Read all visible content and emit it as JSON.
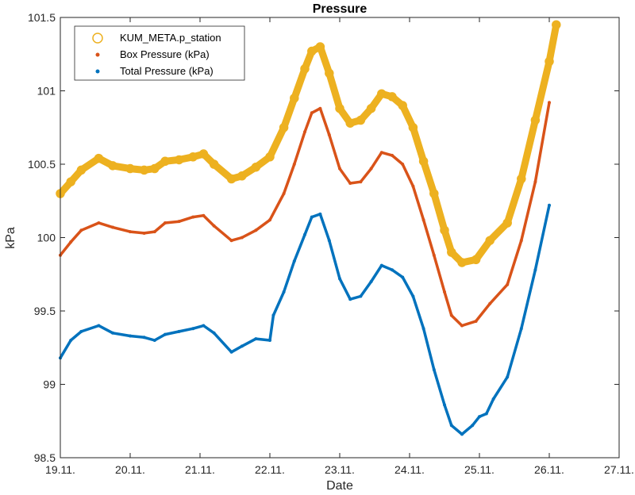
{
  "chart_data": {
    "type": "line",
    "title": "Pressure",
    "xlabel": "Date",
    "ylabel": "kPa",
    "x_unit": "day index (0 = 19.11.)",
    "xlim": [
      0,
      8
    ],
    "ylim": [
      98.5,
      101.5
    ],
    "xticks": [
      0,
      1,
      2,
      3,
      4,
      5,
      6,
      7,
      8
    ],
    "xtick_labels": [
      "19.11.",
      "20.11.",
      "21.11.",
      "22.11.",
      "23.11.",
      "24.11.",
      "25.11.",
      "26.11.",
      "27.11."
    ],
    "yticks": [
      98.5,
      99,
      99.5,
      100,
      100.5,
      101,
      101.5
    ],
    "ytick_labels": [
      "98.5",
      "99",
      "99.5",
      "100",
      "100.5",
      "101",
      "101.5"
    ],
    "grid": false,
    "legend_position": "top-left",
    "series": [
      {
        "name": "KUM_META.p_station",
        "marker": "circle",
        "color": "#EDB120",
        "x": [
          0,
          0.15,
          0.3,
          0.55,
          0.75,
          1.0,
          1.2,
          1.35,
          1.5,
          1.7,
          1.9,
          2.05,
          2.2,
          2.45,
          2.6,
          2.8,
          3.0,
          3.2,
          3.35,
          3.5,
          3.6,
          3.72,
          3.85,
          4.0,
          4.15,
          4.3,
          4.45,
          4.6,
          4.75,
          4.9,
          5.05,
          5.2,
          5.35,
          5.5,
          5.6,
          5.75,
          5.95,
          6.15,
          6.4,
          6.6,
          6.8,
          7.0,
          7.1
        ],
        "y": [
          100.3,
          100.38,
          100.46,
          100.54,
          100.49,
          100.47,
          100.46,
          100.47,
          100.52,
          100.53,
          100.55,
          100.57,
          100.5,
          100.4,
          100.42,
          100.48,
          100.55,
          100.75,
          100.95,
          101.15,
          101.27,
          101.3,
          101.12,
          100.88,
          100.78,
          100.8,
          100.88,
          100.98,
          100.96,
          100.9,
          100.75,
          100.52,
          100.3,
          100.05,
          99.9,
          99.83,
          99.85,
          99.98,
          100.1,
          100.4,
          100.8,
          101.2,
          101.45
        ]
      },
      {
        "name": "Box Pressure (kPa)",
        "marker": "dot",
        "color": "#D95319",
        "x": [
          0,
          0.15,
          0.3,
          0.55,
          0.75,
          1.0,
          1.2,
          1.35,
          1.5,
          1.7,
          1.9,
          2.05,
          2.2,
          2.45,
          2.6,
          2.8,
          3.0,
          3.2,
          3.35,
          3.5,
          3.6,
          3.72,
          3.85,
          4.0,
          4.15,
          4.3,
          4.45,
          4.6,
          4.75,
          4.9,
          5.05,
          5.2,
          5.35,
          5.5,
          5.6,
          5.75,
          5.95,
          6.15,
          6.4,
          6.6,
          6.8,
          7.0
        ],
        "y": [
          99.88,
          99.97,
          100.05,
          100.1,
          100.07,
          100.04,
          100.03,
          100.04,
          100.1,
          100.11,
          100.14,
          100.15,
          100.08,
          99.98,
          100.0,
          100.05,
          100.12,
          100.3,
          100.5,
          100.72,
          100.85,
          100.88,
          100.7,
          100.47,
          100.37,
          100.38,
          100.47,
          100.58,
          100.56,
          100.5,
          100.35,
          100.12,
          99.88,
          99.63,
          99.47,
          99.4,
          99.43,
          99.55,
          99.68,
          99.98,
          100.38,
          100.92
        ]
      },
      {
        "name": "Total Pressure (kPa)",
        "marker": "dot",
        "color": "#0072BD",
        "x": [
          0,
          0.15,
          0.3,
          0.55,
          0.75,
          1.0,
          1.2,
          1.35,
          1.5,
          1.7,
          1.9,
          2.05,
          2.2,
          2.45,
          2.6,
          2.8,
          3.0,
          3.05,
          3.2,
          3.35,
          3.5,
          3.6,
          3.72,
          3.85,
          4.0,
          4.15,
          4.3,
          4.45,
          4.6,
          4.75,
          4.9,
          5.05,
          5.2,
          5.35,
          5.5,
          5.6,
          5.75,
          5.9,
          6.0,
          6.1,
          6.2,
          6.4,
          6.6,
          6.8,
          7.0
        ],
        "y": [
          99.18,
          99.3,
          99.36,
          99.4,
          99.35,
          99.33,
          99.32,
          99.3,
          99.34,
          99.36,
          99.38,
          99.4,
          99.35,
          99.22,
          99.26,
          99.31,
          99.3,
          99.47,
          99.63,
          99.84,
          100.02,
          100.14,
          100.16,
          99.98,
          99.72,
          99.58,
          99.6,
          99.7,
          99.81,
          99.78,
          99.73,
          99.6,
          99.38,
          99.1,
          98.86,
          98.72,
          98.66,
          98.72,
          98.78,
          98.8,
          98.9,
          99.05,
          99.38,
          99.78,
          100.22
        ]
      }
    ]
  }
}
